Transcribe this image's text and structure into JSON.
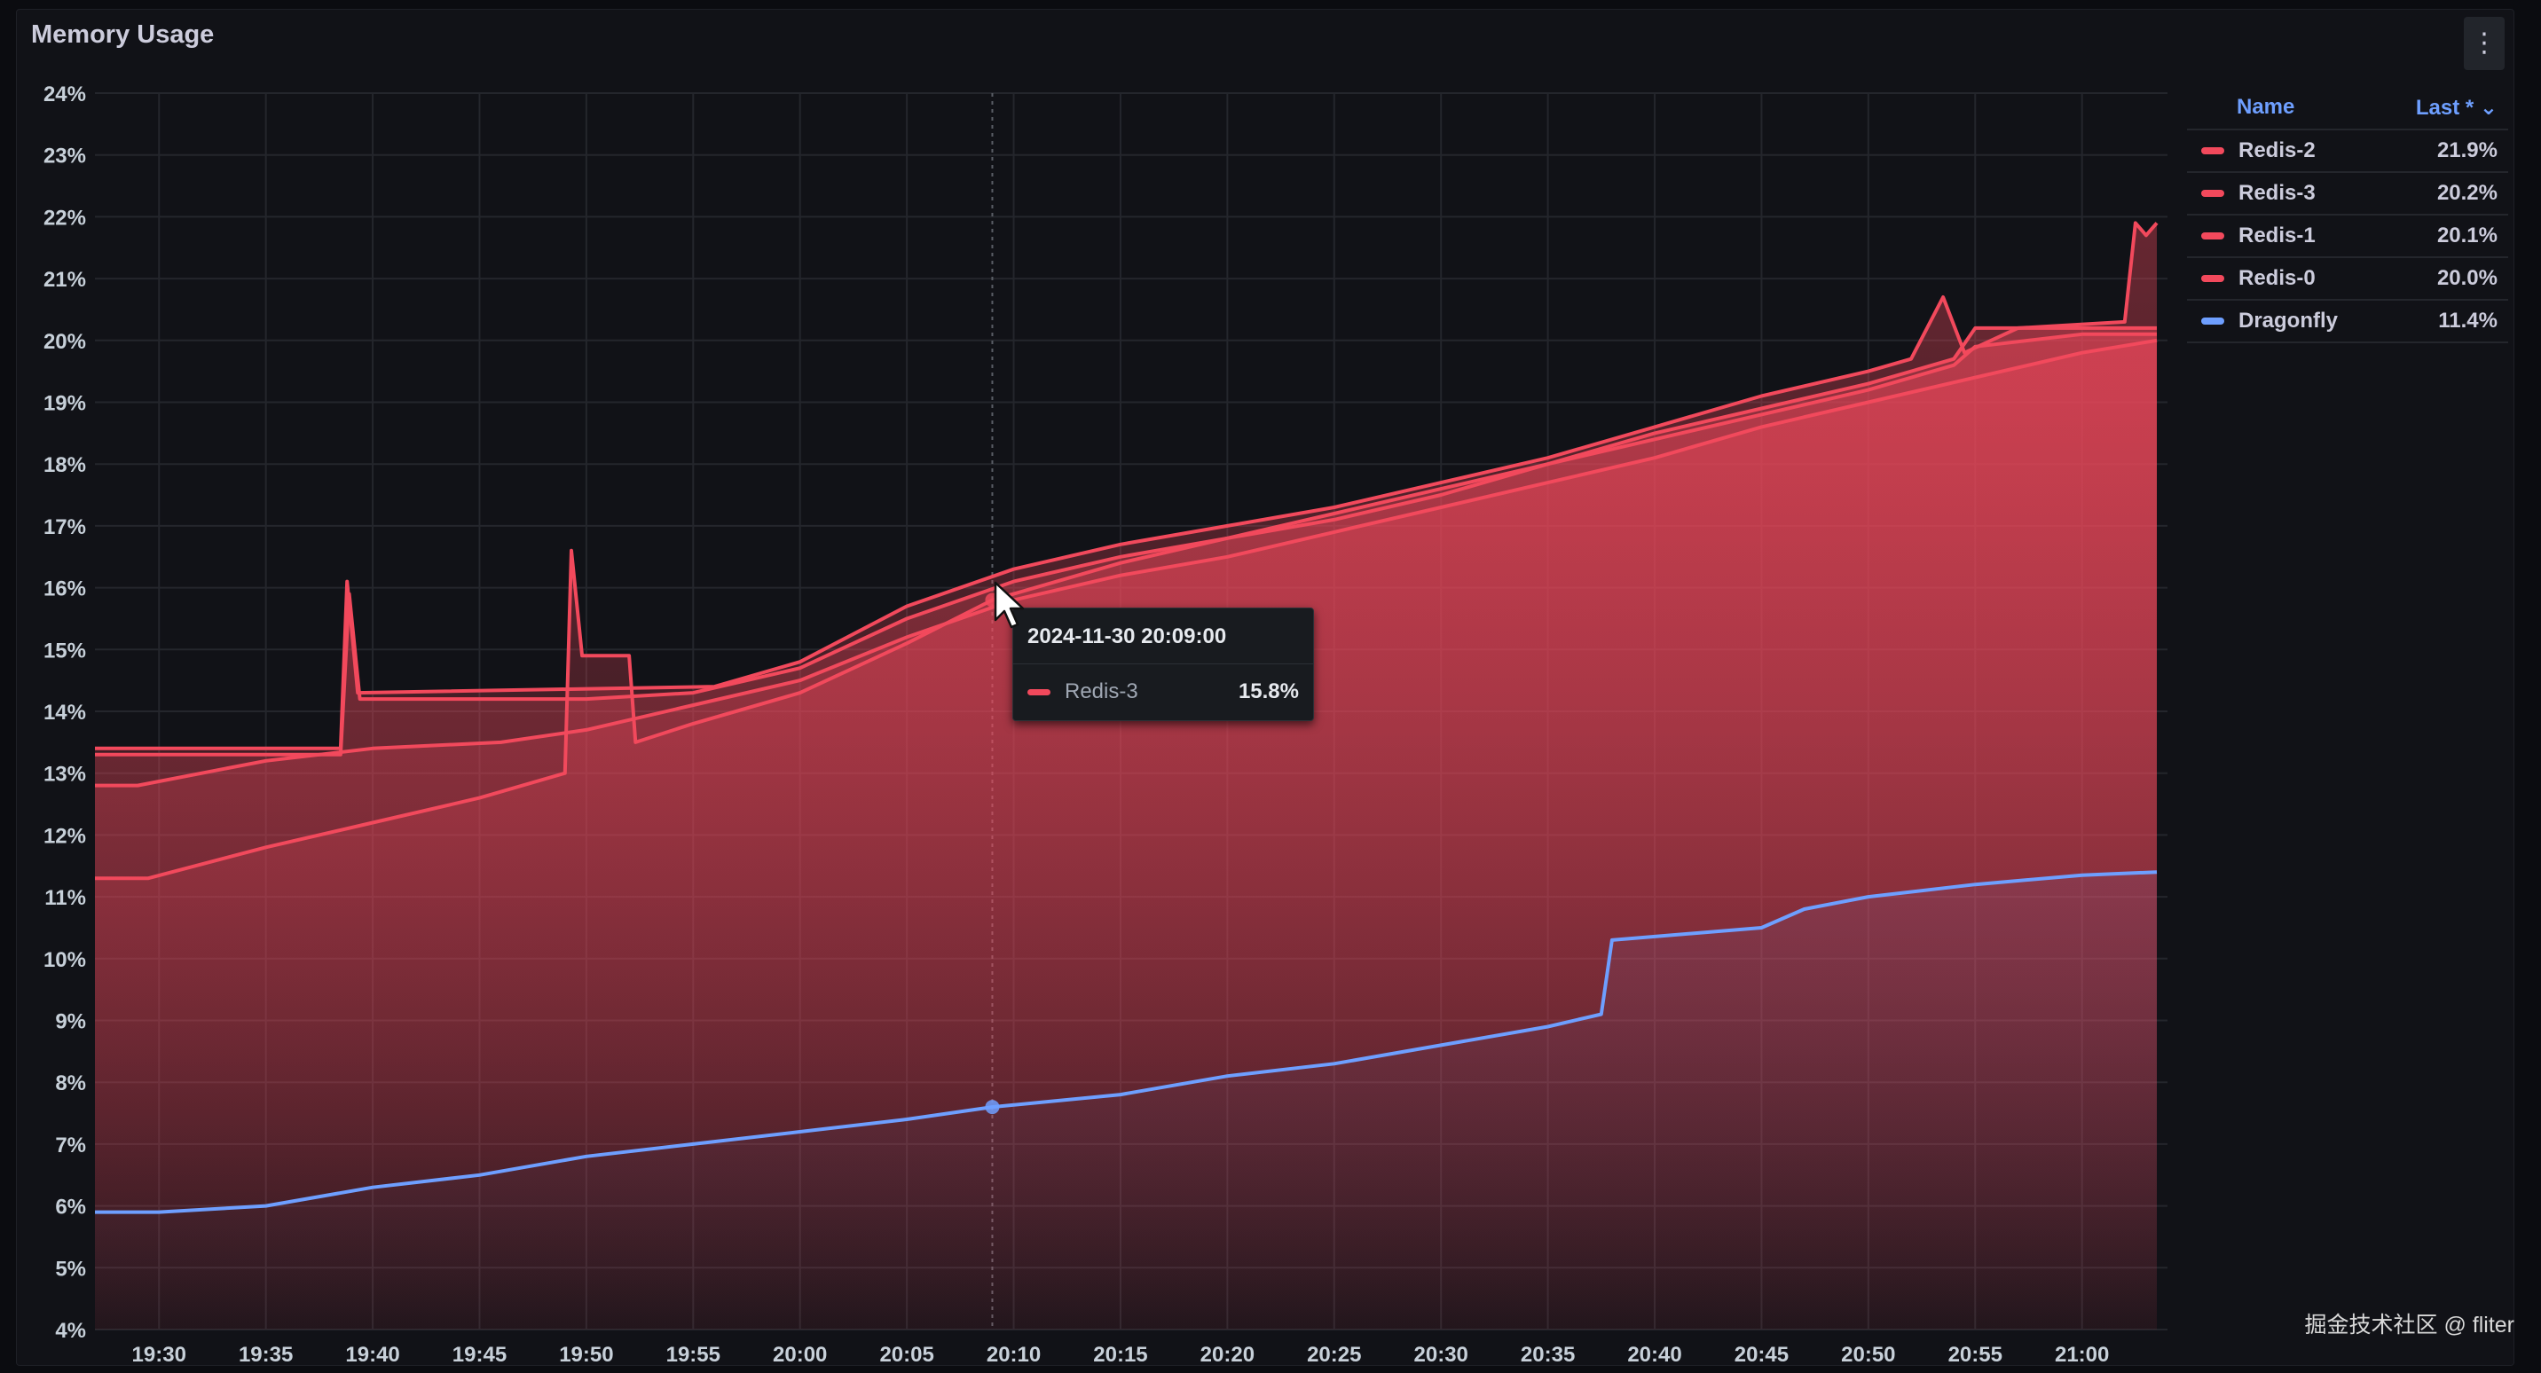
{
  "panel": {
    "title": "Memory Usage"
  },
  "legend": {
    "header_name": "Name",
    "header_last": "Last * ⌄",
    "items": [
      {
        "name": "Redis-2",
        "value": "21.9%",
        "color": "#f2495c"
      },
      {
        "name": "Redis-3",
        "value": "20.2%",
        "color": "#f2495c"
      },
      {
        "name": "Redis-1",
        "value": "20.1%",
        "color": "#f2495c"
      },
      {
        "name": "Redis-0",
        "value": "20.0%",
        "color": "#f2495c"
      },
      {
        "name": "Dragonfly",
        "value": "11.4%",
        "color": "#6e9fff"
      }
    ]
  },
  "tooltip": {
    "time": "2024-11-30 20:09:00",
    "series": "Redis-3",
    "value": "15.8%",
    "color": "#f2495c"
  },
  "watermark": "掘金技术社区 @ fliter",
  "chart_data": {
    "type": "line",
    "title": "Memory Usage",
    "xlabel": "",
    "ylabel": "",
    "x_unit": "minutes",
    "xlim": [
      "19:27",
      "21:04"
    ],
    "ylim": [
      4,
      24
    ],
    "grid": true,
    "legend_position": "right",
    "x_ticks": [
      "19:30",
      "19:35",
      "19:40",
      "19:45",
      "19:50",
      "19:55",
      "20:00",
      "20:05",
      "20:10",
      "20:15",
      "20:20",
      "20:25",
      "20:30",
      "20:35",
      "20:40",
      "20:45",
      "20:50",
      "20:55",
      "21:00"
    ],
    "y_ticks": [
      "4%",
      "5%",
      "6%",
      "7%",
      "8%",
      "9%",
      "10%",
      "11%",
      "12%",
      "13%",
      "14%",
      "15%",
      "16%",
      "17%",
      "18%",
      "19%",
      "20%",
      "21%",
      "22%",
      "23%",
      "24%"
    ],
    "series": [
      {
        "name": "Redis-2",
        "color": "#f2495c",
        "points": [
          [
            "19:27",
            13.4
          ],
          [
            "19:38.5",
            13.4
          ],
          [
            "19:38.8",
            16.1
          ],
          [
            "19:39.3",
            14.3
          ],
          [
            "19:56",
            14.4
          ],
          [
            "20:00",
            14.8
          ],
          [
            "20:05",
            15.7
          ],
          [
            "20:10",
            16.3
          ],
          [
            "20:15",
            16.7
          ],
          [
            "20:20",
            17.0
          ],
          [
            "20:25",
            17.3
          ],
          [
            "20:30",
            17.7
          ],
          [
            "20:35",
            18.1
          ],
          [
            "20:40",
            18.6
          ],
          [
            "20:45",
            19.1
          ],
          [
            "20:50",
            19.5
          ],
          [
            "20:52",
            19.7
          ],
          [
            "20:53.5",
            20.7
          ],
          [
            "20:54.5",
            19.8
          ],
          [
            "20:57",
            20.2
          ],
          [
            "21:02",
            20.3
          ],
          [
            "21:02.5",
            21.9
          ],
          [
            "21:03",
            21.7
          ],
          [
            "21:03.5",
            21.9
          ]
        ]
      },
      {
        "name": "Redis-3",
        "color": "#f2495c",
        "points": [
          [
            "19:27",
            11.3
          ],
          [
            "19:29.5",
            11.3
          ],
          [
            "19:35",
            11.8
          ],
          [
            "19:40",
            12.2
          ],
          [
            "19:45",
            12.6
          ],
          [
            "19:49",
            13.0
          ],
          [
            "19:49.3",
            16.6
          ],
          [
            "19:49.8",
            14.9
          ],
          [
            "19:52",
            14.9
          ],
          [
            "19:52.3",
            13.5
          ],
          [
            "19:55",
            13.8
          ],
          [
            "20:00",
            14.3
          ],
          [
            "20:05",
            15.1
          ],
          [
            "20:09",
            15.8
          ],
          [
            "20:15",
            16.4
          ],
          [
            "20:20",
            16.8
          ],
          [
            "20:25",
            17.1
          ],
          [
            "20:30",
            17.5
          ],
          [
            "20:35",
            18.0
          ],
          [
            "20:40",
            18.5
          ],
          [
            "20:45",
            18.9
          ],
          [
            "20:50",
            19.3
          ],
          [
            "20:54",
            19.7
          ],
          [
            "20:55",
            20.2
          ],
          [
            "21:00",
            20.2
          ],
          [
            "21:03.5",
            20.2
          ]
        ]
      },
      {
        "name": "Redis-1",
        "color": "#f2495c",
        "points": [
          [
            "19:27",
            13.3
          ],
          [
            "19:38.5",
            13.3
          ],
          [
            "19:38.9",
            15.9
          ],
          [
            "19:39.4",
            14.2
          ],
          [
            "19:50",
            14.2
          ],
          [
            "19:55",
            14.3
          ],
          [
            "20:00",
            14.7
          ],
          [
            "20:05",
            15.5
          ],
          [
            "20:10",
            16.1
          ],
          [
            "20:15",
            16.5
          ],
          [
            "20:20",
            16.8
          ],
          [
            "20:25",
            17.2
          ],
          [
            "20:30",
            17.6
          ],
          [
            "20:35",
            18.0
          ],
          [
            "20:40",
            18.4
          ],
          [
            "20:45",
            18.8
          ],
          [
            "20:50",
            19.2
          ],
          [
            "20:54",
            19.6
          ],
          [
            "20:55",
            19.9
          ],
          [
            "21:00",
            20.1
          ],
          [
            "21:03.5",
            20.1
          ]
        ]
      },
      {
        "name": "Redis-0",
        "color": "#f2495c",
        "points": [
          [
            "19:27",
            12.8
          ],
          [
            "19:29",
            12.8
          ],
          [
            "19:35",
            13.2
          ],
          [
            "19:40",
            13.4
          ],
          [
            "19:46",
            13.5
          ],
          [
            "19:50",
            13.7
          ],
          [
            "19:55",
            14.1
          ],
          [
            "20:00",
            14.5
          ],
          [
            "20:05",
            15.2
          ],
          [
            "20:10",
            15.8
          ],
          [
            "20:15",
            16.2
          ],
          [
            "20:20",
            16.5
          ],
          [
            "20:25",
            16.9
          ],
          [
            "20:30",
            17.3
          ],
          [
            "20:35",
            17.7
          ],
          [
            "20:40",
            18.1
          ],
          [
            "20:45",
            18.6
          ],
          [
            "20:50",
            19.0
          ],
          [
            "20:55",
            19.4
          ],
          [
            "21:00",
            19.8
          ],
          [
            "21:03.5",
            20.0
          ]
        ]
      },
      {
        "name": "Dragonfly",
        "color": "#6e9fff",
        "points": [
          [
            "19:27",
            5.9
          ],
          [
            "19:30",
            5.9
          ],
          [
            "19:35",
            6.0
          ],
          [
            "19:40",
            6.3
          ],
          [
            "19:45",
            6.5
          ],
          [
            "19:50",
            6.8
          ],
          [
            "19:55",
            7.0
          ],
          [
            "20:00",
            7.2
          ],
          [
            "20:05",
            7.4
          ],
          [
            "20:09",
            7.6
          ],
          [
            "20:15",
            7.8
          ],
          [
            "20:20",
            8.1
          ],
          [
            "20:25",
            8.3
          ],
          [
            "20:30",
            8.6
          ],
          [
            "20:35",
            8.9
          ],
          [
            "20:37.5",
            9.1
          ],
          [
            "20:38",
            10.3
          ],
          [
            "20:45",
            10.5
          ],
          [
            "20:47",
            10.8
          ],
          [
            "20:50",
            11.0
          ],
          [
            "20:55",
            11.2
          ],
          [
            "21:00",
            11.35
          ],
          [
            "21:03.5",
            11.4
          ]
        ]
      }
    ]
  }
}
